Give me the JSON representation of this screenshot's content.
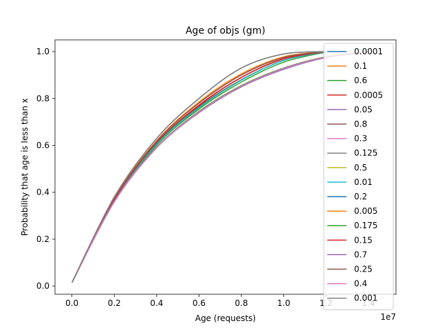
{
  "chart_data": {
    "type": "line",
    "title": "Age of objs (gm)",
    "xlabel": "Age (requests)",
    "ylabel": "Probability that age is less than x",
    "x_offset_label": "1e7",
    "xlim": [
      -0.08,
      1.53
    ],
    "ylim": [
      -0.035,
      1.05
    ],
    "x_ticks": [
      0.0,
      0.2,
      0.4,
      0.6,
      0.8,
      1.0,
      1.2,
      1.4
    ],
    "x_tick_labels": [
      "0.0",
      "0.2",
      "0.4",
      "0.6",
      "0.8",
      "1.0",
      "1.2",
      "1.4"
    ],
    "y_ticks": [
      0.0,
      0.2,
      0.4,
      0.6,
      0.8,
      1.0
    ],
    "y_tick_labels": [
      "0.0",
      "0.2",
      "0.4",
      "0.6",
      "0.8",
      "1.0"
    ],
    "legend_position": "right",
    "grid": false,
    "series": [
      {
        "name": "0.0001",
        "color": "#1f77b4",
        "x": [
          0.0,
          0.2,
          0.4,
          0.6,
          0.8,
          1.0,
          1.2
        ],
        "y": [
          0.015,
          0.37,
          0.61,
          0.77,
          0.89,
          0.97,
          1.0
        ]
      },
      {
        "name": "0.1",
        "color": "#ff7f0e",
        "x": [
          0.0,
          0.2,
          0.4,
          0.6,
          0.8,
          1.0,
          1.2,
          1.4
        ],
        "y": [
          0.015,
          0.36,
          0.59,
          0.74,
          0.85,
          0.925,
          0.975,
          0.998
        ]
      },
      {
        "name": "0.6",
        "color": "#2ca02c",
        "x": [
          0.0,
          0.2,
          0.4,
          0.6,
          0.8,
          1.0,
          1.2
        ],
        "y": [
          0.015,
          0.36,
          0.6,
          0.755,
          0.87,
          0.955,
          0.998
        ]
      },
      {
        "name": "0.0005",
        "color": "#d62728",
        "x": [
          0.0,
          0.2,
          0.4,
          0.6,
          0.8,
          1.0,
          1.2
        ],
        "y": [
          0.015,
          0.37,
          0.61,
          0.77,
          0.89,
          0.97,
          1.0
        ]
      },
      {
        "name": "0.05",
        "color": "#9467bd",
        "x": [
          0.0,
          0.2,
          0.4,
          0.6,
          0.8,
          1.0,
          1.2,
          1.4
        ],
        "y": [
          0.015,
          0.36,
          0.59,
          0.74,
          0.85,
          0.925,
          0.975,
          0.998
        ]
      },
      {
        "name": "0.8",
        "color": "#8c564b",
        "x": [
          0.0,
          0.2,
          0.4,
          0.6,
          0.8,
          1.0,
          1.2
        ],
        "y": [
          0.015,
          0.365,
          0.61,
          0.765,
          0.88,
          0.962,
          0.999
        ]
      },
      {
        "name": "0.3",
        "color": "#e377c2",
        "x": [
          0.0,
          0.2,
          0.4,
          0.6,
          0.8,
          1.0,
          1.2,
          1.4
        ],
        "y": [
          0.015,
          0.36,
          0.59,
          0.74,
          0.85,
          0.925,
          0.975,
          0.998
        ]
      },
      {
        "name": "0.125",
        "color": "#7f7f7f",
        "x": [
          0.0,
          0.2,
          0.4,
          0.6,
          0.8,
          1.0,
          1.2
        ],
        "y": [
          0.015,
          0.38,
          0.63,
          0.8,
          0.93,
          0.99,
          1.0
        ]
      },
      {
        "name": "0.5",
        "color": "#bcbd22",
        "x": [
          0.0,
          0.2,
          0.4,
          0.6,
          0.8,
          1.0,
          1.2,
          1.4
        ],
        "y": [
          0.015,
          0.36,
          0.59,
          0.745,
          0.855,
          0.93,
          0.978,
          0.998
        ]
      },
      {
        "name": "0.01",
        "color": "#17becf",
        "x": [
          0.0,
          0.2,
          0.4,
          0.6,
          0.8,
          1.0,
          1.2
        ],
        "y": [
          0.015,
          0.365,
          0.605,
          0.76,
          0.878,
          0.962,
          0.999
        ]
      },
      {
        "name": "0.2",
        "color": "#1f77b4",
        "x": [
          0.0,
          0.2,
          0.4,
          0.6,
          0.8,
          1.0,
          1.2,
          1.4
        ],
        "y": [
          0.015,
          0.36,
          0.59,
          0.74,
          0.85,
          0.925,
          0.975,
          0.998
        ]
      },
      {
        "name": "0.005",
        "color": "#ff7f0e",
        "x": [
          0.0,
          0.2,
          0.4,
          0.6,
          0.8,
          1.0,
          1.2
        ],
        "y": [
          0.015,
          0.375,
          0.62,
          0.785,
          0.905,
          0.978,
          1.0
        ]
      },
      {
        "name": "0.175",
        "color": "#2ca02c",
        "x": [
          0.0,
          0.2,
          0.4,
          0.6,
          0.8,
          1.0,
          1.2,
          1.4
        ],
        "y": [
          0.015,
          0.36,
          0.592,
          0.745,
          0.855,
          0.93,
          0.978,
          0.998
        ]
      },
      {
        "name": "0.15",
        "color": "#d62728",
        "x": [
          0.0,
          0.2,
          0.4,
          0.6,
          0.8,
          1.0,
          1.2
        ],
        "y": [
          0.015,
          0.368,
          0.612,
          0.772,
          0.89,
          0.968,
          1.0
        ]
      },
      {
        "name": "0.7",
        "color": "#9467bd",
        "x": [
          0.0,
          0.2,
          0.4,
          0.6,
          0.8,
          1.0,
          1.2,
          1.4
        ],
        "y": [
          0.015,
          0.36,
          0.59,
          0.74,
          0.85,
          0.925,
          0.975,
          0.998
        ]
      },
      {
        "name": "0.25",
        "color": "#8c564b",
        "x": [
          0.0,
          0.2,
          0.4,
          0.6,
          0.8,
          1.0,
          1.2
        ],
        "y": [
          0.015,
          0.372,
          0.618,
          0.78,
          0.9,
          0.975,
          1.0
        ]
      },
      {
        "name": "0.4",
        "color": "#e377c2",
        "x": [
          0.0,
          0.2,
          0.4,
          0.6,
          0.8,
          1.0,
          1.2,
          1.4
        ],
        "y": [
          0.015,
          0.36,
          0.59,
          0.742,
          0.852,
          0.928,
          0.976,
          0.998
        ]
      },
      {
        "name": "0.001",
        "color": "#7f7f7f",
        "x": [
          0.0,
          0.2,
          0.4,
          0.6,
          0.8,
          1.0,
          1.2
        ],
        "y": [
          0.015,
          0.38,
          0.63,
          0.8,
          0.93,
          0.99,
          1.0
        ]
      }
    ]
  }
}
